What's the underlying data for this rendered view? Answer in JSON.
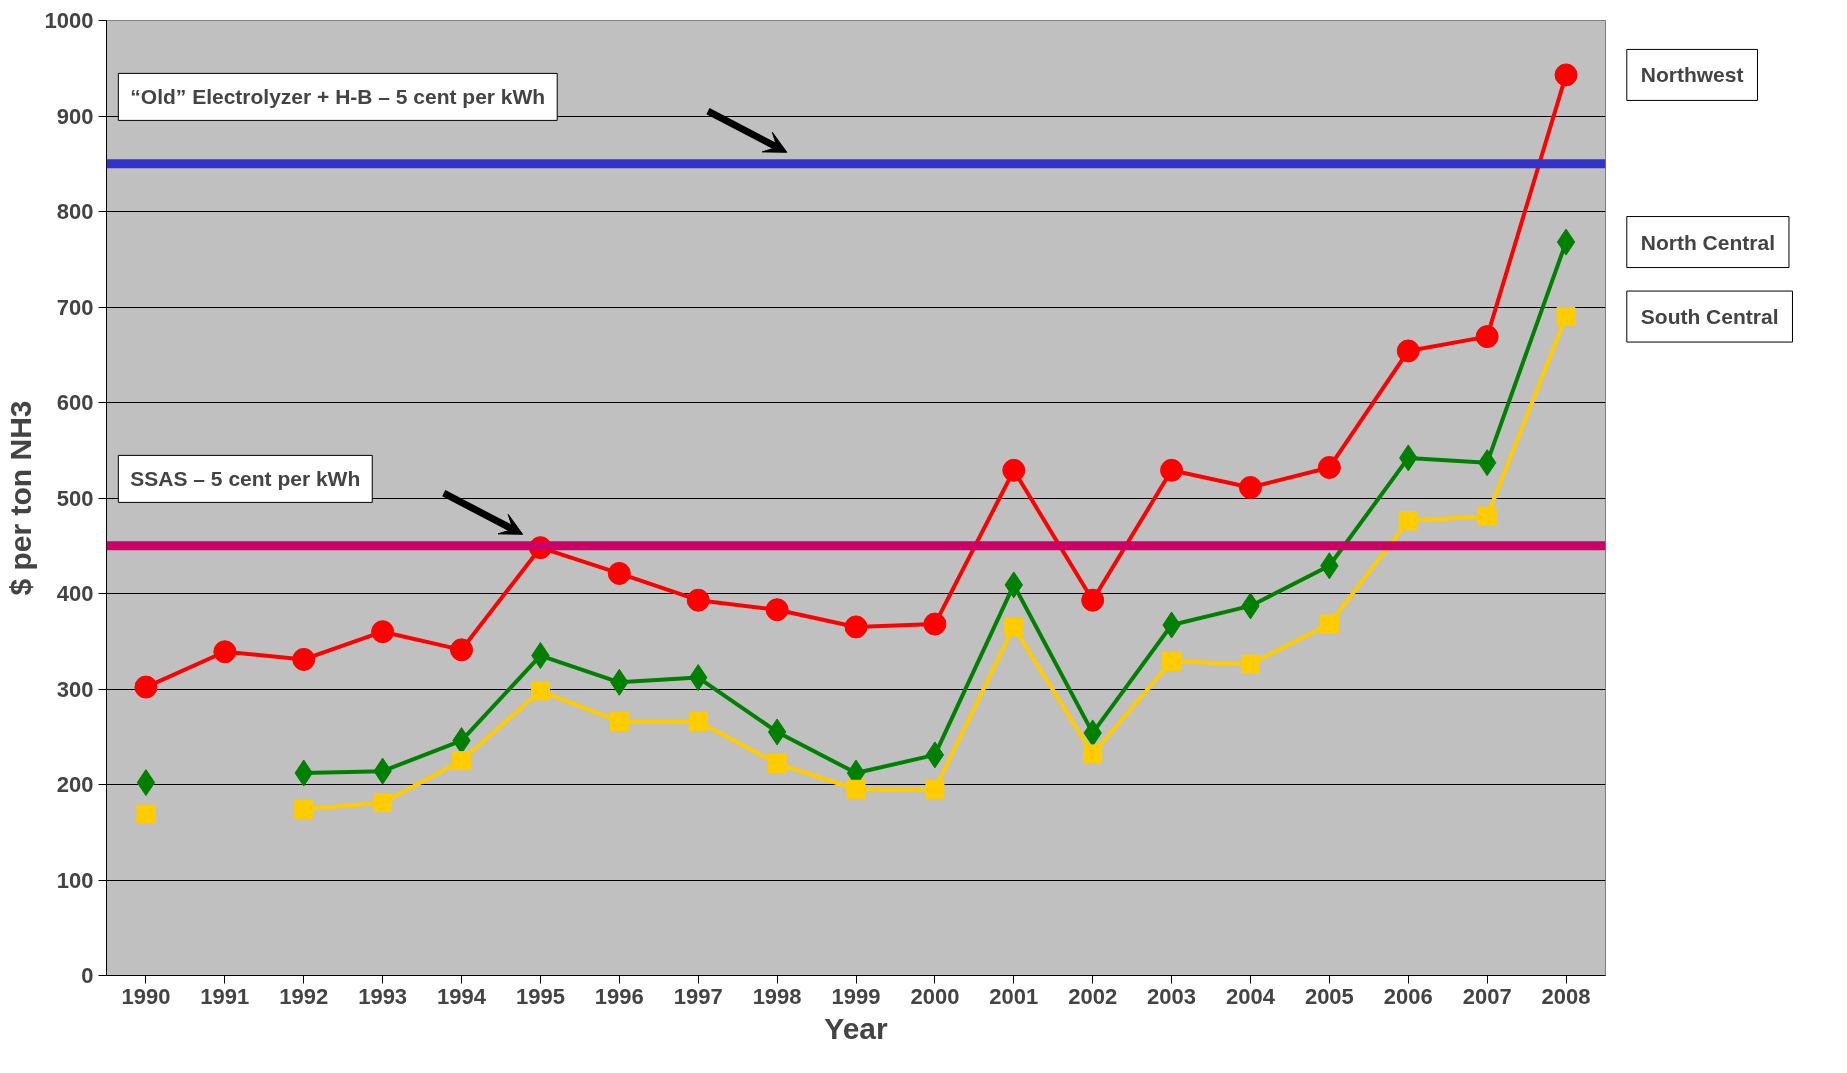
{
  "chart_data": {
    "type": "line",
    "xlabel": "Year",
    "ylabel": "$ per ton NH3",
    "categories": [
      "1990",
      "1991",
      "1992",
      "1993",
      "1994",
      "1995",
      "1996",
      "1997",
      "1998",
      "1999",
      "2000",
      "2001",
      "2002",
      "2003",
      "2004",
      "2005",
      "2006",
      "2007",
      "2008"
    ],
    "ylim": [
      0,
      1000
    ],
    "yticks": [
      0,
      100,
      200,
      300,
      400,
      500,
      600,
      700,
      800,
      900,
      1000
    ],
    "grid": "y",
    "series": [
      {
        "name": "Northwest",
        "color": "#ff0000",
        "marker": "circle",
        "values": [
          302,
          339,
          331,
          360,
          341,
          448,
          421,
          393,
          383,
          365,
          368,
          529,
          393,
          529,
          511,
          532,
          654,
          669,
          943
        ]
      },
      {
        "name": "North Central",
        "color": "#008000",
        "marker": "diamond",
        "values": [
          202,
          null,
          212,
          214,
          246,
          335,
          307,
          312,
          255,
          212,
          231,
          409,
          254,
          367,
          387,
          429,
          542,
          537,
          768
        ]
      },
      {
        "name": "South Central",
        "color": "#ffcc00",
        "marker": "square",
        "values": [
          169,
          null,
          174,
          181,
          225,
          298,
          266,
          266,
          222,
          195,
          195,
          365,
          232,
          329,
          326,
          368,
          476,
          481,
          690
        ]
      }
    ],
    "ref_lines": [
      {
        "axis": "y",
        "value": 850,
        "label": "“Old” Electrolyzer + H-B – 5 cent per kWh",
        "color": "#3333cc"
      },
      {
        "axis": "y",
        "value": 450,
        "label": "SSAS – 5 cent per kWh",
        "color": "#cc0066"
      }
    ]
  }
}
